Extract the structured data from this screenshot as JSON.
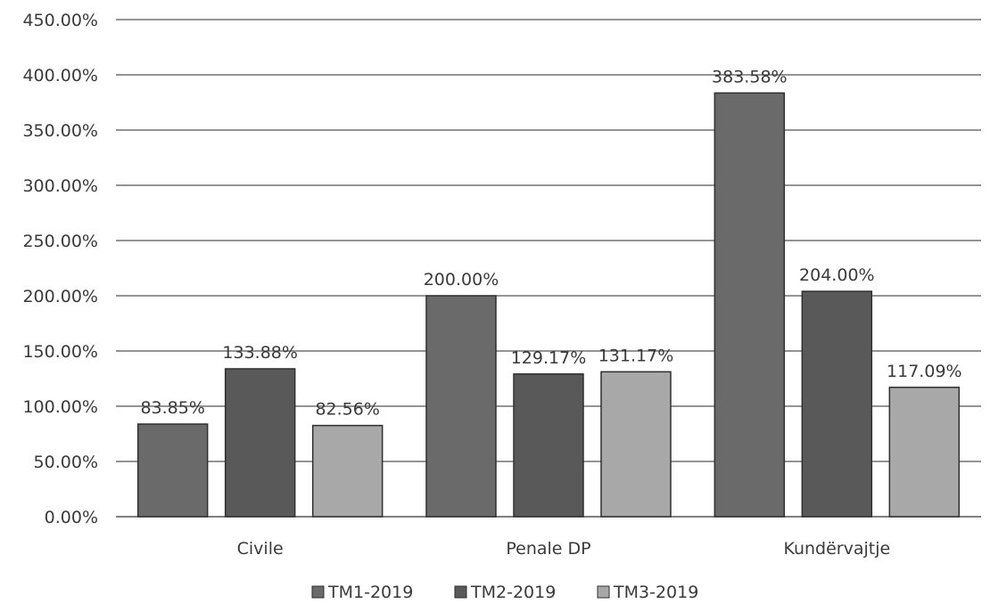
{
  "chart_data": {
    "type": "bar",
    "categories": [
      "Civile",
      "Penale  DP",
      "Kundërvajtje"
    ],
    "series": [
      {
        "name": "TM1-2019",
        "values": [
          83.85,
          200.0,
          383.58
        ],
        "labels": [
          "83.85%",
          "200.00%",
          "383.58%"
        ]
      },
      {
        "name": "TM2-2019",
        "values": [
          133.88,
          129.17,
          204.0
        ],
        "labels": [
          "133.88%",
          "129.17%",
          "204.00%"
        ]
      },
      {
        "name": "TM3-2019",
        "values": [
          82.56,
          131.17,
          117.09
        ],
        "labels": [
          "82.56%",
          "131.17%",
          "117.09%"
        ]
      }
    ],
    "ylim": [
      0,
      450
    ],
    "ytick_values": [
      0,
      50,
      100,
      150,
      200,
      250,
      300,
      350,
      400,
      450
    ],
    "ytick_labels": [
      "0.00%",
      "50.00%",
      "100.00%",
      "150.00%",
      "200.00%",
      "250.00%",
      "300.00%",
      "350.00%",
      "400.00%",
      "450.00%"
    ],
    "grid": true,
    "legend_position": "bottom",
    "colors": {
      "TM1-2019": "#6a6a6a",
      "TM2-2019": "#595959",
      "TM3-2019": "#a8a8a8",
      "gridline": "#555555",
      "bar_outline": "#2f2f2f"
    },
    "title": "",
    "xlabel": "",
    "ylabel": ""
  }
}
